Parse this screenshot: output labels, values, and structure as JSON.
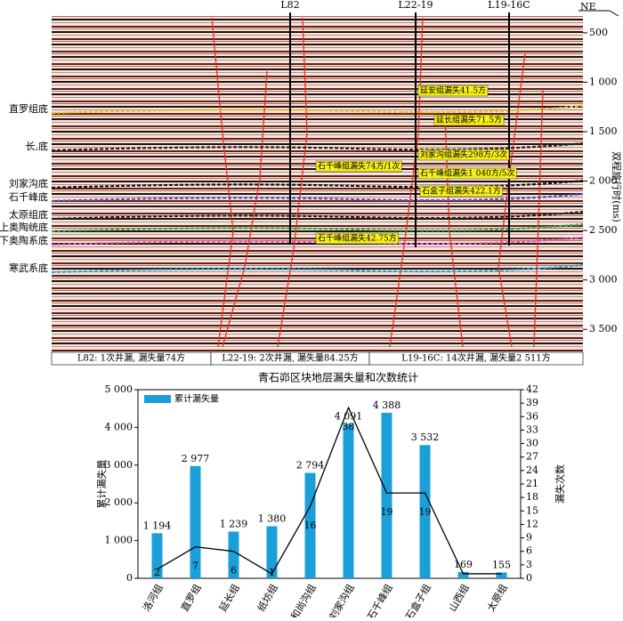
{
  "section": {
    "direction": "NE",
    "wells": [
      "L82",
      "L22-19",
      "L19-16C"
    ],
    "horizons": [
      {
        "label": "直罗组底",
        "color": "#e8c21a"
      },
      {
        "label": "长,底",
        "color": "#222222"
      },
      {
        "label": "刘家沟底",
        "color": "#111111"
      },
      {
        "label": "石千峰底",
        "color": "#5a4fd0"
      },
      {
        "label": "太原组底",
        "color": "#222222"
      },
      {
        "label": "上奥陶统底",
        "color": "#27b84a"
      },
      {
        "label": "下奥陶系底",
        "color": "#e84fb6"
      },
      {
        "label": "寒武系底",
        "color": "#2aa7d8"
      }
    ],
    "annotations": [
      "延安组漏失41.5方",
      "延长组漏失71.5方",
      "刘家沟组漏失298方/3次",
      "石千峰组漏失74方/1次",
      "石千峰组漏失1 040方/5次",
      "石盒子组漏失422.1方",
      "石千峰组漏失42.75方"
    ],
    "time_axis": {
      "label": "双程旅行时(ms)",
      "lim": [
        330,
        3750
      ],
      "ticks": [
        500,
        {
          "value": 1000,
          "label": "1 000"
        },
        {
          "value": 1500,
          "label": "1 500"
        },
        {
          "value": 2000,
          "label": "2 000"
        },
        {
          "value": 2500,
          "label": "2 500"
        },
        {
          "value": 3000,
          "label": "3 000"
        },
        {
          "value": 3500,
          "label": "3 500"
        }
      ]
    },
    "captions": [
      "L82: 1次井漏, 漏失量74方",
      "L22-19: 2次井漏, 漏失量84.25方",
      "L19-16C: 14次井漏, 漏失量2 511方"
    ]
  },
  "chart_data": {
    "type": "bar",
    "title": "青石峁区块地层漏失量和次数统计",
    "categories": [
      "洛河组",
      "直罗组",
      "延长组",
      "纸坊组",
      "和尚沟组",
      "刘家沟组",
      "石千峰组",
      "石盒子组",
      "山西组",
      "太原组"
    ],
    "series": [
      {
        "name": "累计漏失量",
        "color": "#1b9fd8",
        "values": [
          1194,
          2977,
          1239,
          1380,
          2794,
          4091,
          4388,
          3532,
          169,
          155
        ],
        "value_labels": [
          "1 194",
          "2 977",
          "1 239",
          "1 380",
          "2 794",
          "4 091",
          "4 388",
          "3 532",
          "169",
          "155"
        ]
      },
      {
        "color": "#000000",
        "axis": "y2",
        "values": [
          2,
          7,
          6,
          1,
          16,
          38,
          19,
          19,
          1,
          1
        ],
        "value_labels": [
          "2",
          "7",
          "6",
          "1",
          "16",
          "38",
          "19",
          "19",
          null,
          null
        ]
      }
    ],
    "ylabel": "累计漏失量",
    "y2label": "漏失次数",
    "ylim": [
      0,
      5000
    ],
    "yticks": [
      0,
      {
        "value": 1000,
        "label": "1 000"
      },
      {
        "value": 2000,
        "label": "2 000"
      },
      {
        "value": 3000,
        "label": "3 000"
      },
      {
        "value": 4000,
        "label": "4 000"
      },
      {
        "value": 5000,
        "label": "5 000"
      }
    ],
    "y2lim": [
      0,
      42
    ],
    "y2ticks": [
      0,
      3,
      6,
      9,
      12,
      15,
      18,
      21,
      24,
      27,
      30,
      33,
      36,
      39,
      42
    ],
    "legend": "top-left"
  }
}
